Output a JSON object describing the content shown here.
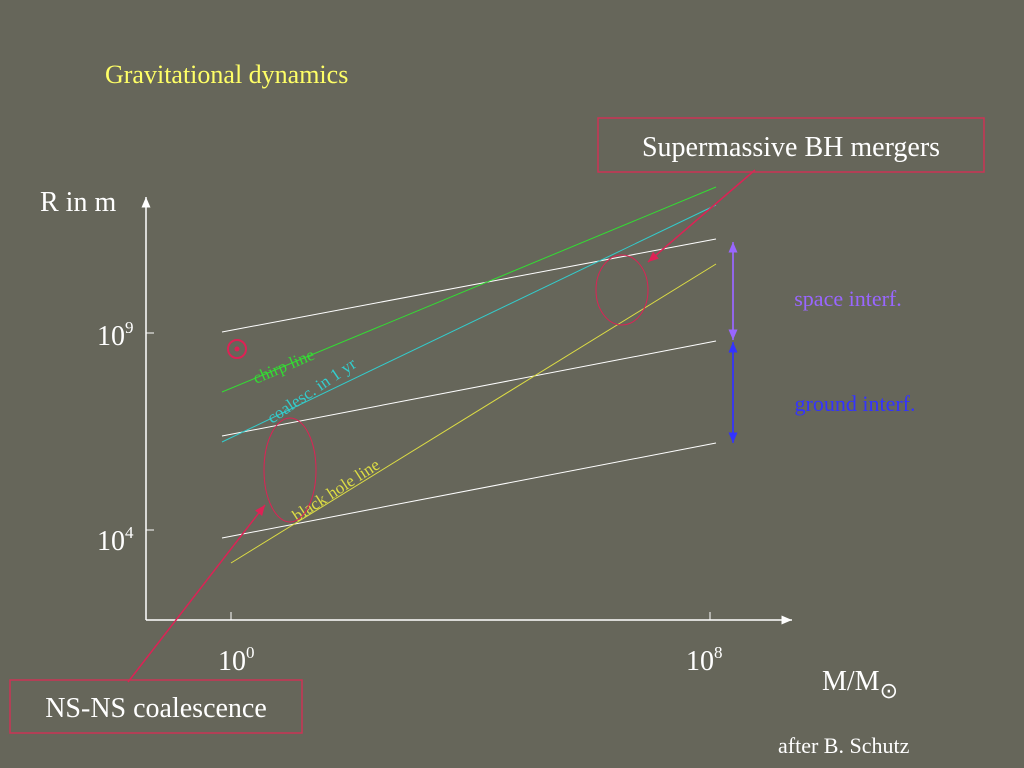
{
  "title": "Gravitational dynamics",
  "callouts": {
    "supermassive": "Supermassive BH mergers",
    "nsns": "NS-NS coalescence"
  },
  "axes": {
    "y_label": "R in m",
    "y_ticks": [
      {
        "base": "10",
        "exp": "9"
      },
      {
        "base": "10",
        "exp": "4"
      }
    ],
    "x_ticks": [
      {
        "base": "10",
        "exp": "0"
      },
      {
        "base": "10",
        "exp": "8"
      }
    ],
    "x_label": {
      "text": "M/M",
      "sub": "⊙"
    }
  },
  "line_labels": {
    "chirp": "chirp line",
    "coalesc": "coalesc. in 1 yr",
    "black_hole": "black hole line"
  },
  "bands": {
    "space": "space interf.",
    "ground": "ground interf."
  },
  "credit": "after B. Schutz"
}
